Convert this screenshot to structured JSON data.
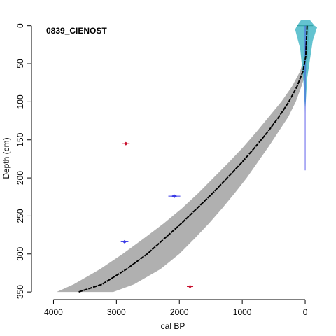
{
  "chart_data": {
    "type": "age-depth",
    "title": "0839_CIENOST",
    "xlabel": "cal BP",
    "ylabel": "Depth (cm)",
    "x_reversed": true,
    "y_reversed": true,
    "xlim": [
      4350,
      -300
    ],
    "ylim": [
      -8,
      360
    ],
    "x_ticks": [
      4000,
      3000,
      2000,
      1000,
      0
    ],
    "y_ticks": [
      0,
      50,
      100,
      150,
      200,
      250,
      300,
      350
    ],
    "grid": false,
    "model_median": {
      "depth": [
        0,
        20,
        40,
        60,
        80,
        100,
        120,
        140,
        160,
        180,
        200,
        220,
        240,
        260,
        280,
        300,
        320,
        340,
        350
      ],
      "age": [
        -30,
        -20,
        -10,
        35,
        130,
        260,
        420,
        600,
        800,
        1010,
        1240,
        1470,
        1720,
        1970,
        2240,
        2510,
        2840,
        3230,
        3600
      ]
    },
    "model_range": {
      "depth": [
        0,
        20,
        40,
        60,
        80,
        100,
        120,
        140,
        160,
        180,
        200,
        220,
        240,
        260,
        280,
        300,
        320,
        340,
        350
      ],
      "min_age": [
        -60,
        -55,
        -45,
        -20,
        60,
        150,
        270,
        430,
        590,
        760,
        930,
        1120,
        1320,
        1530,
        1760,
        2000,
        2300,
        2720,
        3050
      ],
      "max_age": [
        -20,
        -10,
        10,
        80,
        210,
        380,
        580,
        780,
        990,
        1220,
        1460,
        1700,
        1960,
        2250,
        2570,
        2900,
        3260,
        3680,
        3950
      ]
    },
    "dated_samples": [
      {
        "depth": 155,
        "age": 2850,
        "width": 120,
        "status": "outlier",
        "color": "#c8102e"
      },
      {
        "depth": 224,
        "age": 2080,
        "width": 190,
        "status": "included",
        "color": "#3a3ae6"
      },
      {
        "depth": 284,
        "age": 2870,
        "width": 120,
        "status": "included",
        "color": "#3a3ae6"
      },
      {
        "depth": 343,
        "age": 1830,
        "width": 100,
        "status": "outlier",
        "color": "#c8102e"
      },
      {
        "depth": 0,
        "age": 0,
        "width": 250,
        "status": "surface",
        "color": "#2a9d9d"
      }
    ],
    "colors": {
      "range_fill": "#b0b0b0",
      "median_line": "#000000",
      "surface_fill": "#48b8c8",
      "included": "#3a3ae6",
      "outlier": "#c8102e"
    }
  }
}
